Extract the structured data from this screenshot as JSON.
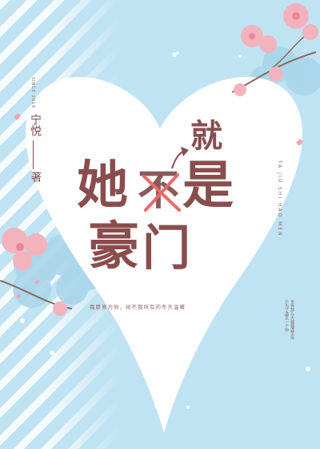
{
  "cover": {
    "title_part1": "她",
    "title_part2": "不",
    "title_part3": "是",
    "title_part4": "豪",
    "title_part5": "门",
    "title_insert": "就",
    "author": "宁悦",
    "author_suffix": "著",
    "side_tag": "SINCE 2018",
    "slogan": "我愿意为你，给不我所有的冬天温暖",
    "pinyin": "TA JIU SHI HAO MEN",
    "blurb_1": "世界那么大偏偏遇见你",
    "blurb_2": "只为了遇见一个你"
  },
  "colors": {
    "background": "#bfe3f3",
    "heart": "#ffffff",
    "title": "#8a4d4d",
    "cross": "#e86a6a",
    "blossom": "#f3b3bd"
  }
}
